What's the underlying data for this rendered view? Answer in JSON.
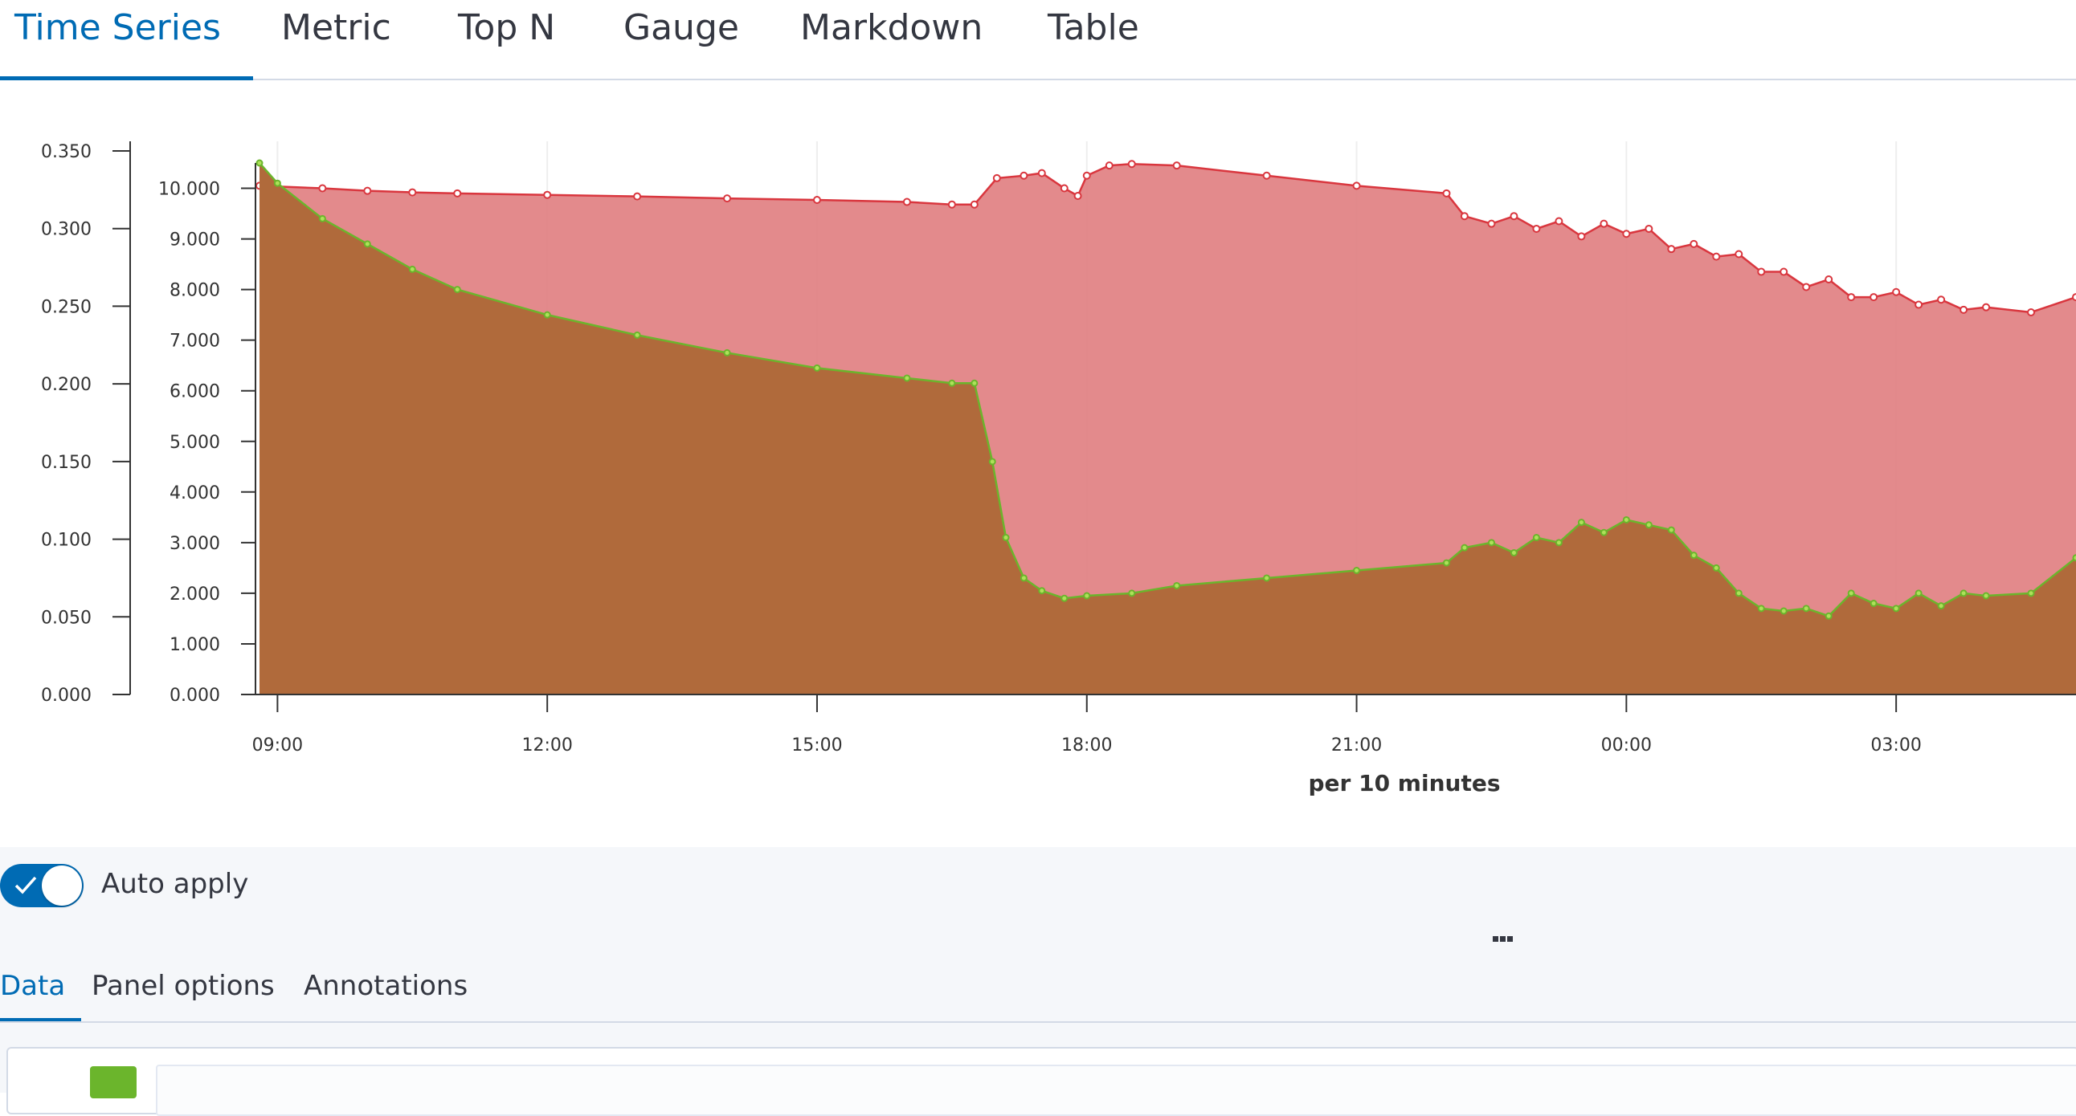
{
  "viz_tabs": [
    "Time Series",
    "Metric",
    "Top N",
    "Gauge",
    "Markdown",
    "Table"
  ],
  "chart_data": {
    "type": "area",
    "xlabel": "per 10 minutes",
    "x_ticks": [
      "09:00",
      "12:00",
      "15:00",
      "18:00",
      "21:00",
      "00:00",
      "03:00"
    ],
    "left_axis": {
      "ticks": [
        "0.000",
        "0.050",
        "0.100",
        "0.150",
        "0.200",
        "0.250",
        "0.300",
        "0.350"
      ],
      "ylim": [
        0,
        0.35
      ]
    },
    "right_axis": {
      "ticks": [
        "0.000",
        "1.000",
        "2.000",
        "3.000",
        "4.000",
        "5.000",
        "6.000",
        "7.000",
        "8.000",
        "9.000",
        "10.000"
      ],
      "ylim": [
        0,
        10.5
      ]
    },
    "series": [
      {
        "color": "#d9363e",
        "fill": "#e07d80",
        "values": [
          [
            8.8,
            10.05
          ],
          [
            9.5,
            10.0
          ],
          [
            10,
            9.95
          ],
          [
            10.5,
            9.92
          ],
          [
            11,
            9.9
          ],
          [
            12,
            9.87
          ],
          [
            13,
            9.84
          ],
          [
            14,
            9.8
          ],
          [
            15,
            9.77
          ],
          [
            16,
            9.73
          ],
          [
            16.5,
            9.68
          ],
          [
            16.75,
            9.68
          ],
          [
            17,
            10.2
          ],
          [
            17.3,
            10.25
          ],
          [
            17.5,
            10.3
          ],
          [
            17.75,
            10.0
          ],
          [
            17.9,
            9.85
          ],
          [
            18,
            10.25
          ],
          [
            18.25,
            10.45
          ],
          [
            18.5,
            10.48
          ],
          [
            19,
            10.45
          ],
          [
            20,
            10.25
          ],
          [
            21,
            10.05
          ],
          [
            22,
            9.9
          ],
          [
            22.2,
            9.45
          ],
          [
            22.5,
            9.3
          ],
          [
            22.75,
            9.45
          ],
          [
            23,
            9.2
          ],
          [
            23.25,
            9.35
          ],
          [
            23.5,
            9.05
          ],
          [
            23.75,
            9.3
          ],
          [
            24,
            9.1
          ],
          [
            24.25,
            9.2
          ],
          [
            24.5,
            8.8
          ],
          [
            24.75,
            8.9
          ],
          [
            25,
            8.65
          ],
          [
            25.25,
            8.7
          ],
          [
            25.5,
            8.35
          ],
          [
            25.75,
            8.35
          ],
          [
            26,
            8.05
          ],
          [
            26.25,
            8.2
          ],
          [
            26.5,
            7.85
          ],
          [
            26.75,
            7.85
          ],
          [
            27,
            7.95
          ],
          [
            27.25,
            7.7
          ],
          [
            27.5,
            7.8
          ],
          [
            27.75,
            7.6
          ],
          [
            28,
            7.65
          ],
          [
            28.5,
            7.55
          ],
          [
            29,
            7.85
          ]
        ]
      },
      {
        "color": "#6bb52c",
        "fill": "#b06a3b",
        "values": [
          [
            8.8,
            10.5
          ],
          [
            9.0,
            10.1
          ],
          [
            9.5,
            9.4
          ],
          [
            10,
            8.9
          ],
          [
            10.5,
            8.4
          ],
          [
            11,
            8.0
          ],
          [
            12,
            7.5
          ],
          [
            13,
            7.1
          ],
          [
            14,
            6.75
          ],
          [
            15,
            6.45
          ],
          [
            16,
            6.25
          ],
          [
            16.5,
            6.15
          ],
          [
            16.75,
            6.15
          ],
          [
            16.95,
            4.6
          ],
          [
            17.1,
            3.1
          ],
          [
            17.3,
            2.3
          ],
          [
            17.5,
            2.05
          ],
          [
            17.75,
            1.9
          ],
          [
            18,
            1.95
          ],
          [
            18.5,
            2.0
          ],
          [
            19,
            2.15
          ],
          [
            20,
            2.3
          ],
          [
            21,
            2.45
          ],
          [
            22,
            2.6
          ],
          [
            22.2,
            2.9
          ],
          [
            22.5,
            3.0
          ],
          [
            22.75,
            2.8
          ],
          [
            23,
            3.1
          ],
          [
            23.25,
            3.0
          ],
          [
            23.5,
            3.4
          ],
          [
            23.75,
            3.2
          ],
          [
            24,
            3.45
          ],
          [
            24.25,
            3.35
          ],
          [
            24.5,
            3.25
          ],
          [
            24.75,
            2.75
          ],
          [
            25,
            2.5
          ],
          [
            25.25,
            2.0
          ],
          [
            25.5,
            1.7
          ],
          [
            25.75,
            1.65
          ],
          [
            26,
            1.7
          ],
          [
            26.25,
            1.55
          ],
          [
            26.5,
            2.0
          ],
          [
            26.75,
            1.8
          ],
          [
            27,
            1.7
          ],
          [
            27.25,
            2.0
          ],
          [
            27.5,
            1.75
          ],
          [
            27.75,
            2.0
          ],
          [
            28,
            1.95
          ],
          [
            28.5,
            2.0
          ],
          [
            29,
            2.7
          ]
        ]
      }
    ]
  },
  "toggle": {
    "label": "Auto apply",
    "checked": true
  },
  "editor_tabs": [
    "Data",
    "Panel options",
    "Annotations"
  ]
}
